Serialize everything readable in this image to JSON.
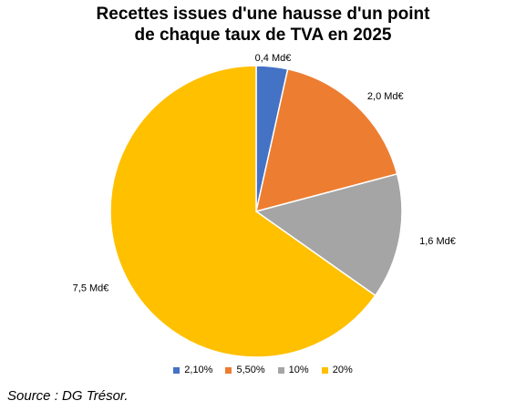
{
  "chart_data": {
    "type": "pie",
    "title_lines": [
      "Recettes issues d'une hausse d'un point",
      "de chaque taux de TVA en 2025"
    ],
    "categories": [
      "2,10%",
      "5,50%",
      "10%",
      "20%"
    ],
    "values": [
      0.4,
      2.0,
      1.6,
      7.5
    ],
    "data_labels": [
      "0,4 Md€",
      "2,0 Md€",
      "1,6 Md€",
      "7,5 Md€"
    ],
    "colors": [
      "#4472C4",
      "#ED7D31",
      "#A5A5A5",
      "#FFC000"
    ],
    "legend": "bottom"
  },
  "source": "Source : DG Trésor."
}
